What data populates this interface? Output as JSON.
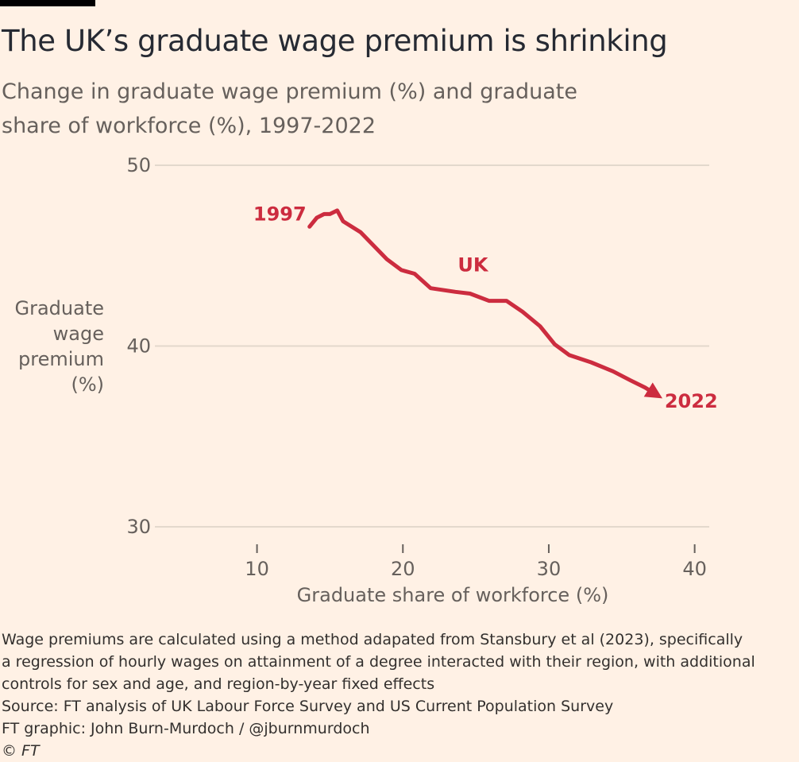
{
  "title": "The UK’s graduate wage premium is shrinking",
  "subtitle": "Change in graduate wage premium (%) and graduate share of workforce (%), 1997-2022",
  "chart_data": {
    "type": "line",
    "title": "The UK’s graduate wage premium is shrinking",
    "subtitle": "Change in graduate wage premium (%) and graduate share of workforce (%), 1997-2022",
    "xlabel": "Graduate share of workforce (%)",
    "ylabel_lines": [
      "Graduate",
      "wage",
      "premium",
      "(%)"
    ],
    "xlim": [
      3,
      41
    ],
    "ylim": [
      30,
      50
    ],
    "x_ticks": [
      10,
      20,
      30,
      40
    ],
    "y_ticks": [
      30,
      40,
      50
    ],
    "grid": "horizontal",
    "series_color": "#cc2c3f",
    "series": [
      {
        "name": "UK",
        "start_label": "1997",
        "end_label": "2022",
        "x": [
          13.6,
          14.1,
          14.6,
          15.0,
          15.5,
          15.9,
          17.1,
          18.9,
          19.9,
          20.8,
          21.9,
          23.6,
          24.6,
          25.9,
          27.1,
          28.2,
          29.4,
          30.4,
          31.4,
          32.9,
          34.4,
          35.6,
          36.6,
          37.4
        ],
        "y": [
          46.6,
          47.1,
          47.3,
          47.3,
          47.5,
          46.9,
          46.3,
          44.8,
          44.2,
          44.0,
          43.2,
          43.0,
          42.9,
          42.5,
          42.5,
          41.9,
          41.1,
          40.1,
          39.5,
          39.1,
          38.6,
          38.1,
          37.7,
          37.3
        ]
      }
    ]
  },
  "footnote": {
    "method_lines": [
      "Wage premiums are calculated using a method adapated from Stansbury et al (2023), specifically",
      "a regression of hourly wages on attainment of a degree interacted with their region, with additional",
      "controls for sex and age, and region-by-year fixed effects"
    ],
    "source": "Source: FT analysis of UK Labour Force Survey and US Current Population Survey",
    "credit": "FT graphic: John Burn-Murdoch / @jburnmurdoch",
    "copyright": "© FT"
  }
}
